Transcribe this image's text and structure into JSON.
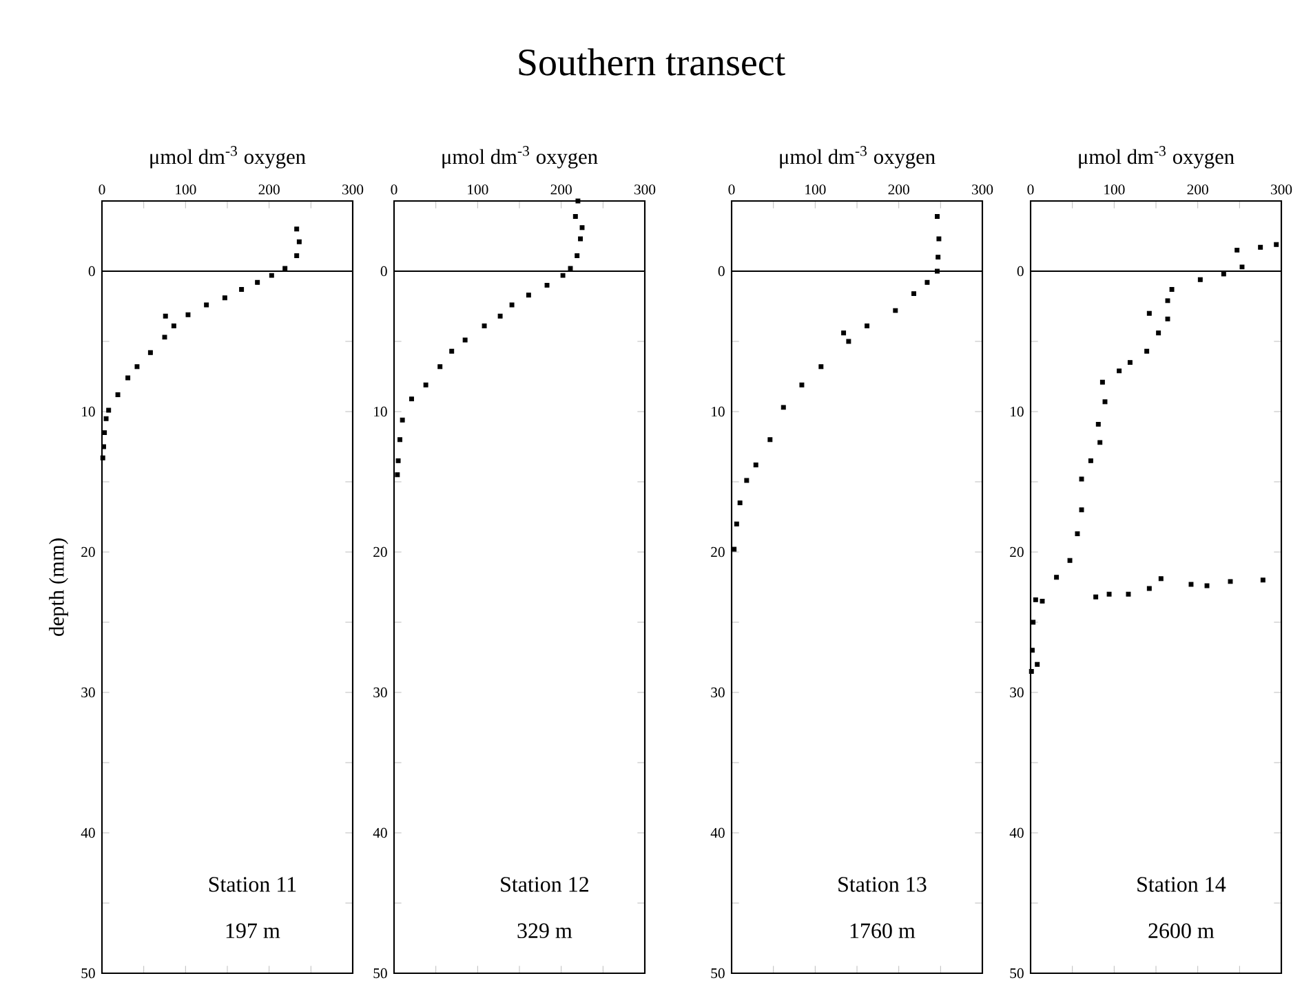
{
  "chart_data": [
    {
      "type": "scatter",
      "xlabel": "μmol dm$^{-3}$ oxygen",
      "ylabel": "depth (mm)",
      "color": "#000000",
      "marker": "square",
      "x": [
        233,
        236,
        233,
        219,
        203,
        186,
        167,
        147,
        125,
        103,
        86,
        76,
        75,
        58,
        42,
        31,
        19,
        8,
        5,
        3,
        2,
        1
      ],
      "values": [
        -3.0,
        -2.1,
        -1.1,
        -0.2,
        0.3,
        0.8,
        1.3,
        1.9,
        2.4,
        3.1,
        3.9,
        3.2,
        4.7,
        5.8,
        6.8,
        7.6,
        8.8,
        9.9,
        10.5,
        11.5,
        12.5,
        13.3
      ],
      "xlim": [
        0,
        300
      ],
      "ylim": [
        50,
        -5
      ],
      "xticks": [
        0,
        {
          "value": 50,
          "label": null
        },
        100,
        {
          "value": 150,
          "label": null
        },
        200,
        {
          "value": 250,
          "label": null
        },
        300
      ],
      "yticks": [
        0,
        {
          "value": 5,
          "label": null
        },
        10,
        {
          "value": 15,
          "label": null
        },
        20,
        {
          "value": 25,
          "label": null
        },
        30,
        {
          "value": 35,
          "label": null
        },
        40,
        {
          "value": 45,
          "label": null
        },
        50
      ],
      "ref_lines": [
        {
          "axis": "y",
          "value": 0
        }
      ],
      "annotations": [
        "Station 11",
        "197 m"
      ]
    },
    {
      "type": "scatter",
      "title": "Southern transect",
      "xlabel": "μmol dm$^{-3}$ oxygen",
      "color": "#000000",
      "marker": "square",
      "x": [
        220,
        217,
        225,
        223,
        219,
        211,
        202,
        183,
        161,
        141,
        127,
        108,
        85,
        69,
        55,
        38,
        21,
        10,
        7,
        5,
        4
      ],
      "values": [
        -5.0,
        -3.9,
        -3.1,
        -2.3,
        -1.1,
        -0.2,
        0.3,
        1.0,
        1.7,
        2.4,
        3.2,
        3.9,
        4.9,
        5.7,
        6.8,
        8.1,
        9.1,
        10.6,
        12,
        13.5,
        14.5
      ],
      "xlim": [
        0,
        300
      ],
      "ylim": [
        50,
        -5
      ],
      "xticks": [
        0,
        {
          "value": 50,
          "label": null
        },
        100,
        {
          "value": 150,
          "label": null
        },
        200,
        {
          "value": 250,
          "label": null
        },
        300
      ],
      "yticks": [
        0,
        {
          "value": 5,
          "label": null
        },
        10,
        {
          "value": 15,
          "label": null
        },
        20,
        {
          "value": 25,
          "label": null
        },
        30,
        {
          "value": 35,
          "label": null
        },
        40,
        {
          "value": 45,
          "label": null
        },
        50
      ],
      "ref_lines": [
        {
          "axis": "y",
          "value": 0
        }
      ],
      "annotations": [
        "Station 12",
        "329 m"
      ]
    },
    {
      "type": "scatter",
      "xlabel": "μmol dm$^{-3}$ oxygen",
      "color": "#000000",
      "marker": "square",
      "x": [
        246,
        248,
        247,
        246,
        234,
        218,
        196,
        162,
        134,
        140,
        107,
        84,
        62,
        46,
        29,
        18,
        10,
        6,
        3
      ],
      "values": [
        -3.9,
        -2.3,
        -1.0,
        0,
        0.8,
        1.6,
        2.8,
        3.9,
        4.4,
        5.0,
        6.8,
        8.1,
        9.7,
        12.0,
        13.8,
        14.9,
        16.5,
        18,
        19.8
      ],
      "xlim": [
        0,
        300
      ],
      "ylim": [
        50,
        -5
      ],
      "xticks": [
        0,
        {
          "value": 50,
          "label": null
        },
        100,
        {
          "value": 150,
          "label": null
        },
        200,
        {
          "value": 250,
          "label": null
        },
        300
      ],
      "yticks": [
        0,
        {
          "value": 5,
          "label": null
        },
        10,
        {
          "value": 15,
          "label": null
        },
        20,
        {
          "value": 25,
          "label": null
        },
        30,
        {
          "value": 35,
          "label": null
        },
        40,
        {
          "value": 45,
          "label": null
        },
        50
      ],
      "ref_lines": [
        {
          "axis": "y",
          "value": 0
        }
      ],
      "annotations": [
        "Station 13",
        "1760 m"
      ]
    },
    {
      "type": "scatter",
      "xlabel": "μmol dm$^{-3}$ oxygen",
      "color": "#000000",
      "marker": "square",
      "x": [
        294,
        275,
        247,
        253,
        231,
        203,
        169,
        164,
        142,
        164,
        153,
        139,
        119,
        106,
        86,
        89,
        81,
        83,
        72,
        61,
        61,
        56,
        47,
        31,
        156,
        192,
        211,
        239,
        278,
        142,
        117,
        94,
        78,
        14,
        6,
        3,
        2,
        1,
        8
      ],
      "values": [
        -1.9,
        -1.7,
        -1.5,
        -0.3,
        0.2,
        0.6,
        1.3,
        2.1,
        3.0,
        3.4,
        4.4,
        5.7,
        6.5,
        7.1,
        7.9,
        9.3,
        10.9,
        12.2,
        13.5,
        14.8,
        17.0,
        18.7,
        20.6,
        21.8,
        21.9,
        22.3,
        22.4,
        22.1,
        22.0,
        22.6,
        23.0,
        23.0,
        23.2,
        23.5,
        23.4,
        25,
        27,
        28.5,
        28
      ],
      "xlim": [
        0,
        300
      ],
      "ylim": [
        50,
        -5
      ],
      "xticks": [
        0,
        {
          "value": 50,
          "label": null
        },
        100,
        {
          "value": 150,
          "label": null
        },
        200,
        {
          "value": 250,
          "label": null
        },
        300
      ],
      "yticks": [
        0,
        {
          "value": 5,
          "label": null
        },
        10,
        {
          "value": 15,
          "label": null
        },
        20,
        {
          "value": 25,
          "label": null
        },
        30,
        {
          "value": 35,
          "label": null
        },
        40,
        {
          "value": 45,
          "label": null
        },
        50
      ],
      "ref_lines": [
        {
          "axis": "y",
          "value": 0
        }
      ],
      "annotations": [
        "Station 14",
        "2600 m"
      ]
    }
  ]
}
